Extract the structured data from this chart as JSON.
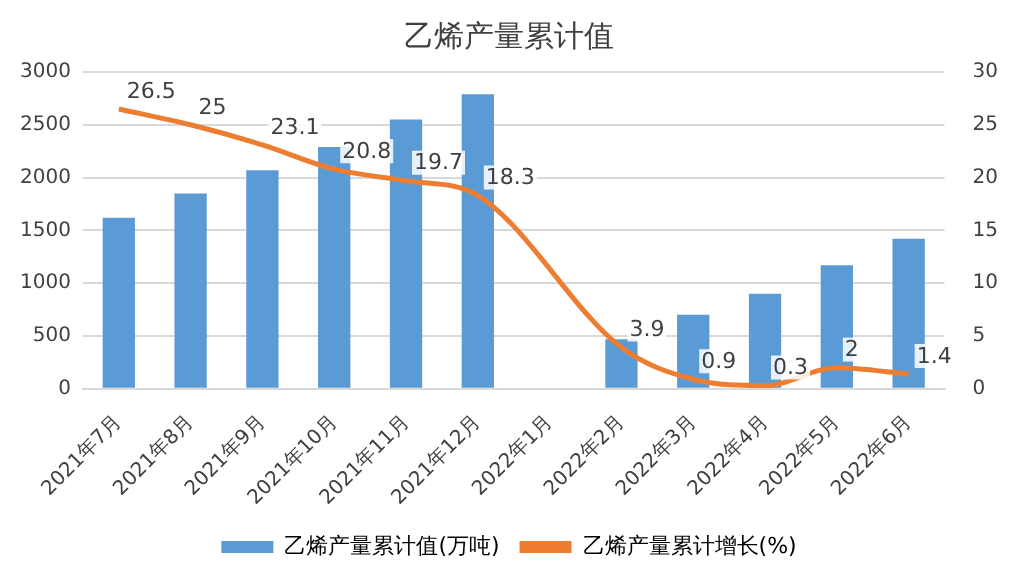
{
  "chart_data": {
    "type": "bar",
    "title": "乙烯产量累计值",
    "categories": [
      "2021年7月",
      "2021年8月",
      "2021年9月",
      "2021年10月",
      "2021年11月",
      "2021年12月",
      "2022年1月",
      "2022年2月",
      "2022年3月",
      "2022年4月",
      "2022年5月",
      "2022年6月"
    ],
    "series": [
      {
        "name": "乙烯产量累计值(万吨)",
        "color": "#5b9bd5",
        "values": [
          1620,
          1850,
          2070,
          2290,
          2550,
          2790,
          null,
          470,
          700,
          900,
          1170,
          1420
        ]
      },
      {
        "name": "乙烯产量累计增长(%)",
        "type": "line",
        "axis": "y2",
        "color": "#ed7d31",
        "values": [
          26.5,
          25,
          23.1,
          20.8,
          19.7,
          18.3,
          null,
          3.9,
          0.9,
          0.3,
          2,
          1.4
        ],
        "data_labels": true
      }
    ],
    "ylim": [
      0,
      3000
    ],
    "yticks": [
      0,
      500,
      1000,
      1500,
      2000,
      2500,
      3000
    ],
    "y2lim": [
      0,
      30
    ],
    "y2ticks": [
      0,
      5,
      10,
      15,
      20,
      25,
      30
    ],
    "grid": "y",
    "legend": "bottom",
    "marker": "none"
  }
}
